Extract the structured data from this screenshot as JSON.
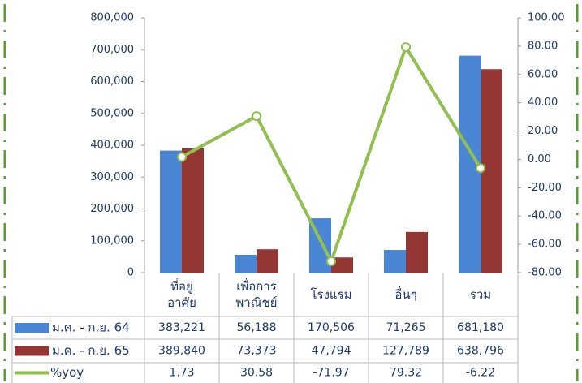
{
  "chart_data": {
    "type": "bar",
    "categories": [
      "ที่อยู่\nอาศัย",
      "เพื่อการ\nพาณิชย์",
      "โรงแรม",
      "อื่นๆ",
      "รวม"
    ],
    "series": [
      {
        "name": "ม.ค. - ก.ย. 64",
        "color": "#4a86d4",
        "values": [
          383221,
          56188,
          170506,
          71265,
          681180
        ],
        "value_labels": [
          "383,221",
          "56,188",
          "170,506",
          "71,265",
          "681,180"
        ]
      },
      {
        "name": "ม.ค. - ก.ย. 65",
        "color": "#943634",
        "values": [
          389840,
          73373,
          47794,
          127789,
          638796
        ],
        "value_labels": [
          "389,840",
          "73,373",
          "47,794",
          "127,789",
          "638,796"
        ]
      },
      {
        "name": "%yoy",
        "color": "#92c050",
        "axis": "y2",
        "type": "line",
        "values": [
          1.73,
          30.58,
          -71.97,
          79.32,
          -6.22
        ]
      }
    ],
    "ylim": [
      0,
      800000
    ],
    "yticks": [
      0,
      {
        "value": 100000,
        "label": "100,000"
      },
      {
        "value": 200000,
        "label": "200,000"
      },
      {
        "value": 300000,
        "label": "300,000"
      },
      {
        "value": 400000,
        "label": "400,000"
      },
      {
        "value": 500000,
        "label": "500,000"
      },
      {
        "value": 600000,
        "label": "600,000"
      },
      {
        "value": 700000,
        "label": "700,000"
      },
      {
        "value": 800000,
        "label": "800,000"
      }
    ],
    "y2lim": [
      -80,
      100
    ],
    "y2ticks": [
      {
        "value": -80,
        "label": "-80.00"
      },
      {
        "value": -60,
        "label": "-60.00"
      },
      {
        "value": -40,
        "label": "-40.00"
      },
      {
        "value": -20,
        "label": "-20.00"
      },
      {
        "value": 0,
        "label": "0.00"
      },
      {
        "value": 20,
        "label": "20.00"
      },
      {
        "value": 40,
        "label": "40.00"
      },
      {
        "value": 60,
        "label": "60.00"
      },
      {
        "value": 80,
        "label": "80.00"
      },
      {
        "value": 100,
        "label": "100.00"
      }
    ]
  }
}
